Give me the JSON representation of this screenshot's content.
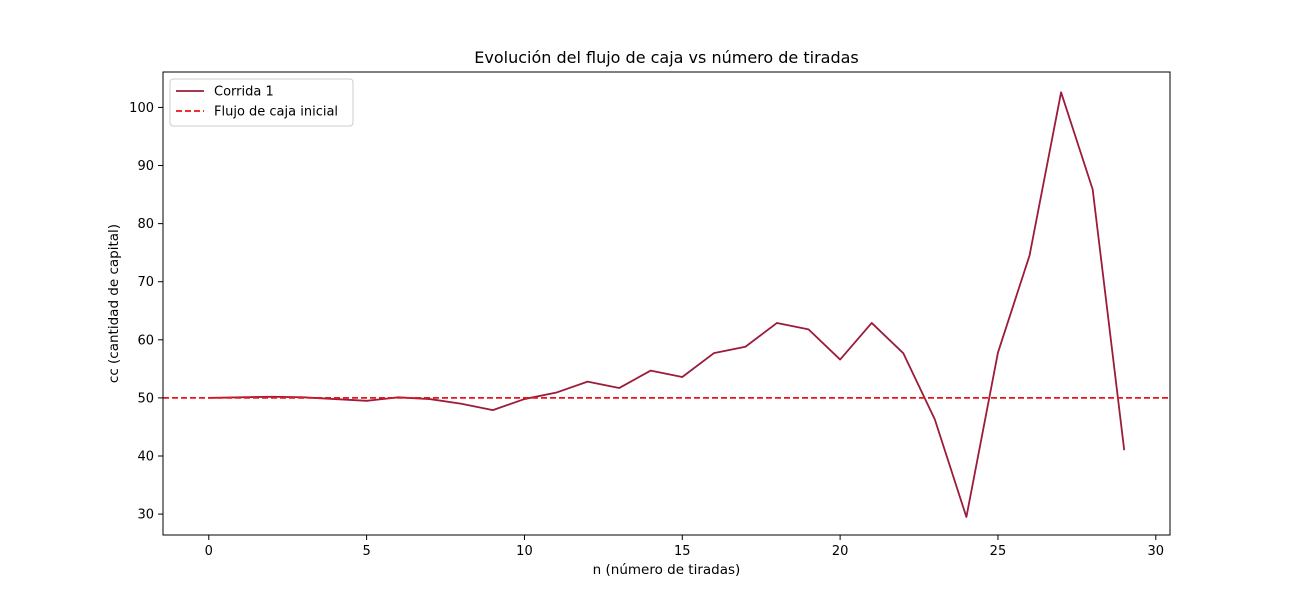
{
  "chart_data": {
    "type": "line",
    "title": "Evolución del flujo de caja vs número de tiradas",
    "xlabel": "n (número de tiradas)",
    "ylabel": "cc (cantidad de capital)",
    "xlim": [
      -1.45,
      30.45
    ],
    "ylim": [
      26.4,
      106.1
    ],
    "xticks": [
      0,
      5,
      10,
      15,
      20,
      25,
      30
    ],
    "yticks": [
      30,
      40,
      50,
      60,
      70,
      80,
      90,
      100
    ],
    "grid": false,
    "legend_position": "top-left",
    "series": [
      {
        "name": "Corrida 1",
        "color": "#9b1b3a",
        "style": "solid",
        "x": [
          0,
          1,
          2,
          3,
          4,
          5,
          6,
          7,
          8,
          9,
          10,
          11,
          12,
          13,
          14,
          15,
          16,
          17,
          18,
          19,
          20,
          21,
          22,
          23,
          24,
          25,
          26,
          27,
          28,
          29
        ],
        "y": [
          50,
          50.1,
          50.2,
          50.1,
          49.8,
          49.5,
          50.1,
          49.8,
          49,
          47.9,
          49.8,
          50.9,
          52.8,
          51.7,
          54.7,
          53.6,
          57.7,
          58.8,
          62.9,
          61.8,
          56.6,
          62.9,
          57.7,
          46.3,
          29.5,
          57.8,
          74.5,
          102.6,
          85.9,
          41
        ]
      },
      {
        "name": "Flujo de caja inicial",
        "color": "#e8151b",
        "style": "dashed",
        "y_constant": 50
      }
    ]
  }
}
